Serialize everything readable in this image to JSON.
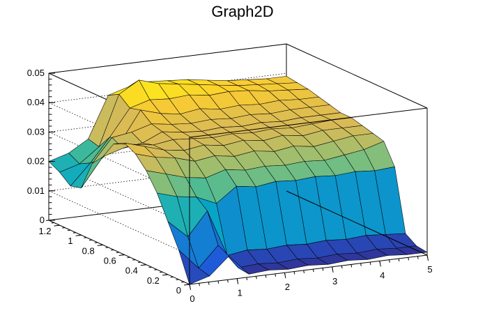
{
  "chart_data": {
    "type": "surface3d",
    "title": "Graph2D",
    "x_ticks": [
      "0",
      "1",
      "2",
      "3",
      "4",
      "5"
    ],
    "y_ticks": [
      "0",
      "0.2",
      "0.4",
      "0.6",
      "0.8",
      "1",
      "1.2"
    ],
    "z_ticks": [
      "0",
      "0.01",
      "0.02",
      "0.03",
      "0.04",
      "0.05"
    ],
    "xlim": [
      0,
      5
    ],
    "ylim": [
      0,
      1.3
    ],
    "zlim": [
      0,
      0.05
    ],
    "palette": "kBird",
    "surface_rows": [
      {
        "y": 0.0,
        "z": [
          0.0,
          0.002,
          0.008,
          0.001,
          0.0015,
          0.001,
          0.0015,
          0.001,
          0.0015,
          0.001,
          0.0015,
          0.001,
          0.001
        ]
      },
      {
        "y": 0.1,
        "z": [
          0.01,
          0.003,
          0.01,
          0.0015,
          0.002,
          0.0015,
          0.002,
          0.0015,
          0.002,
          0.0015,
          0.002,
          0.0015,
          0.0015
        ]
      },
      {
        "y": 0.2,
        "z": [
          0.018,
          0.012,
          0.02,
          0.004,
          0.005,
          0.0045,
          0.005,
          0.0045,
          0.005,
          0.0045,
          0.005,
          0.0045,
          0.004
        ]
      },
      {
        "y": 0.3,
        "z": [
          0.026,
          0.024,
          0.023,
          0.02,
          0.025,
          0.024,
          0.025,
          0.0245,
          0.025,
          0.0245,
          0.025,
          0.0245,
          0.025
        ]
      },
      {
        "y": 0.4,
        "z": [
          0.032,
          0.03,
          0.028,
          0.027,
          0.029,
          0.028,
          0.0285,
          0.028,
          0.0285,
          0.028,
          0.029,
          0.03,
          0.032
        ]
      },
      {
        "y": 0.5,
        "z": [
          0.036,
          0.034,
          0.033,
          0.031,
          0.032,
          0.031,
          0.032,
          0.031,
          0.032,
          0.031,
          0.032,
          0.033,
          0.033
        ]
      },
      {
        "y": 0.6,
        "z": [
          0.038,
          0.036,
          0.034,
          0.033,
          0.034,
          0.033,
          0.034,
          0.033,
          0.034,
          0.033,
          0.034,
          0.034,
          0.034
        ]
      },
      {
        "y": 0.7,
        "z": [
          0.036,
          0.035,
          0.034,
          0.035,
          0.0345,
          0.034,
          0.0345,
          0.034,
          0.0345,
          0.034,
          0.0345,
          0.035,
          0.035
        ]
      },
      {
        "y": 0.8,
        "z": [
          0.03,
          0.032,
          0.033,
          0.036,
          0.035,
          0.0345,
          0.035,
          0.0345,
          0.035,
          0.0345,
          0.035,
          0.035,
          0.035
        ]
      },
      {
        "y": 0.9,
        "z": [
          0.026,
          0.034,
          0.035,
          0.037,
          0.036,
          0.0355,
          0.036,
          0.0355,
          0.036,
          0.0355,
          0.036,
          0.036,
          0.036
        ]
      },
      {
        "y": 1.0,
        "z": [
          0.016,
          0.025,
          0.03,
          0.04,
          0.038,
          0.037,
          0.038,
          0.037,
          0.0375,
          0.037,
          0.0375,
          0.037,
          0.037
        ]
      },
      {
        "y": 1.1,
        "z": [
          0.015,
          0.022,
          0.03,
          0.039,
          0.041,
          0.0405,
          0.041,
          0.04,
          0.0405,
          0.04,
          0.039,
          0.0385,
          0.038
        ]
      },
      {
        "y": 1.2,
        "z": [
          0.018,
          0.02,
          0.025,
          0.042,
          0.046,
          0.044,
          0.043,
          0.042,
          0.041,
          0.04,
          0.0395,
          0.039,
          0.0385
        ]
      },
      {
        "y": 1.3,
        "z": [
          0.02,
          0.022,
          0.026,
          0.04,
          0.042,
          0.043,
          0.0425,
          0.042,
          0.041,
          0.04,
          0.0395,
          0.039,
          0.039
        ]
      }
    ],
    "surface_x": [
      0.0,
      0.42,
      0.83,
      1.25,
      1.67,
      2.08,
      2.5,
      2.92,
      3.33,
      3.75,
      4.17,
      4.58,
      5.0
    ]
  }
}
